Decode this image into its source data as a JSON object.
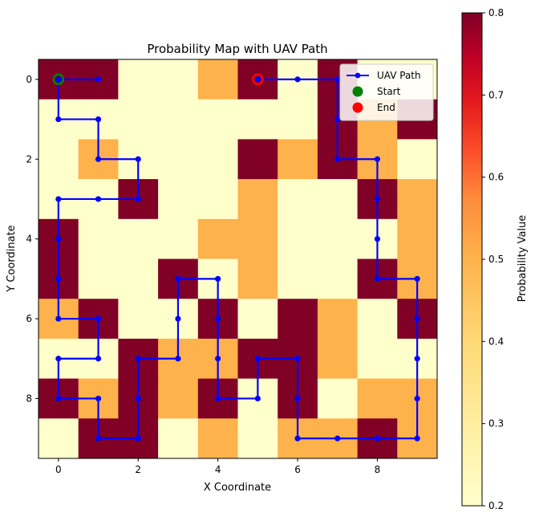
{
  "chart_data": {
    "type": "heatmap",
    "title": "Probability Map with UAV Path",
    "xlabel": "X Coordinate",
    "ylabel": "Y Coordinate",
    "x_ticks": [
      0,
      2,
      4,
      6,
      8
    ],
    "y_ticks": [
      0,
      2,
      4,
      6,
      8
    ],
    "xlim": [
      -0.5,
      9.5
    ],
    "ylim": [
      9.5,
      -0.5
    ],
    "grid": false,
    "colormap": "YlOrRd",
    "colorbar": {
      "label": "Probability Value",
      "range": [
        0.2,
        0.8
      ],
      "ticks": [
        "0.2",
        "0.3",
        "0.4",
        "0.5",
        "0.6",
        "0.7",
        "0.8"
      ]
    },
    "color_levels": {
      "0.2": "#ffffcc",
      "0.4": "#feb24c",
      "0.8": "#800026"
    },
    "grid_values": [
      [
        0.8,
        0.8,
        0.2,
        0.2,
        0.4,
        0.8,
        0.2,
        0.8,
        0.2,
        0.2
      ],
      [
        0.2,
        0.2,
        0.2,
        0.2,
        0.2,
        0.2,
        0.2,
        0.8,
        0.4,
        0.8
      ],
      [
        0.2,
        0.4,
        0.2,
        0.2,
        0.2,
        0.8,
        0.4,
        0.8,
        0.4,
        0.2
      ],
      [
        0.2,
        0.2,
        0.8,
        0.2,
        0.2,
        0.4,
        0.2,
        0.2,
        0.8,
        0.4
      ],
      [
        0.8,
        0.2,
        0.2,
        0.2,
        0.4,
        0.4,
        0.2,
        0.2,
        0.2,
        0.4
      ],
      [
        0.8,
        0.2,
        0.2,
        0.8,
        0.2,
        0.4,
        0.2,
        0.2,
        0.8,
        0.4
      ],
      [
        0.4,
        0.8,
        0.2,
        0.2,
        0.8,
        0.2,
        0.8,
        0.4,
        0.2,
        0.8
      ],
      [
        0.2,
        0.2,
        0.8,
        0.4,
        0.4,
        0.8,
        0.8,
        0.4,
        0.2,
        0.2
      ],
      [
        0.8,
        0.4,
        0.8,
        0.4,
        0.8,
        0.2,
        0.8,
        0.2,
        0.4,
        0.4
      ],
      [
        0.2,
        0.8,
        0.8,
        0.2,
        0.4,
        0.2,
        0.4,
        0.4,
        0.8,
        0.4
      ]
    ],
    "series": [
      {
        "name": "UAV Path",
        "color": "#0000ff",
        "points": [
          [
            0,
            0
          ],
          [
            1,
            0
          ],
          [
            0,
            0
          ],
          [
            0,
            1
          ],
          [
            1,
            1
          ],
          [
            1,
            2
          ],
          [
            2,
            2
          ],
          [
            2,
            3
          ],
          [
            1,
            3
          ],
          [
            0,
            3
          ],
          [
            0,
            4
          ],
          [
            0,
            5
          ],
          [
            0,
            6
          ],
          [
            1,
            6
          ],
          [
            1,
            7
          ],
          [
            0,
            7
          ],
          [
            0,
            8
          ],
          [
            1,
            8
          ],
          [
            1,
            9
          ],
          [
            2,
            9
          ],
          [
            2,
            8
          ],
          [
            2,
            7
          ],
          [
            3,
            7
          ],
          [
            3,
            6
          ],
          [
            3,
            5
          ],
          [
            4,
            5
          ],
          [
            4,
            6
          ],
          [
            4,
            7
          ],
          [
            4,
            8
          ],
          [
            5,
            8
          ],
          [
            5,
            7
          ],
          [
            6,
            7
          ],
          [
            6,
            8
          ],
          [
            6,
            9
          ],
          [
            7,
            9
          ],
          [
            8,
            9
          ],
          [
            9,
            9
          ],
          [
            9,
            8
          ],
          [
            9,
            7
          ],
          [
            9,
            6
          ],
          [
            9,
            5
          ],
          [
            8,
            5
          ],
          [
            8,
            4
          ],
          [
            8,
            3
          ],
          [
            8,
            2
          ],
          [
            7,
            2
          ],
          [
            7,
            1
          ],
          [
            7,
            0
          ],
          [
            6,
            0
          ],
          [
            5,
            0
          ]
        ]
      }
    ],
    "markers": [
      {
        "name": "Start",
        "x": 0,
        "y": 0,
        "color": "#008000"
      },
      {
        "name": "End",
        "x": 5,
        "y": 0,
        "color": "#ff0000"
      }
    ],
    "legend": {
      "position": "top-right",
      "entries": [
        "UAV Path",
        "Start",
        "End"
      ]
    }
  }
}
